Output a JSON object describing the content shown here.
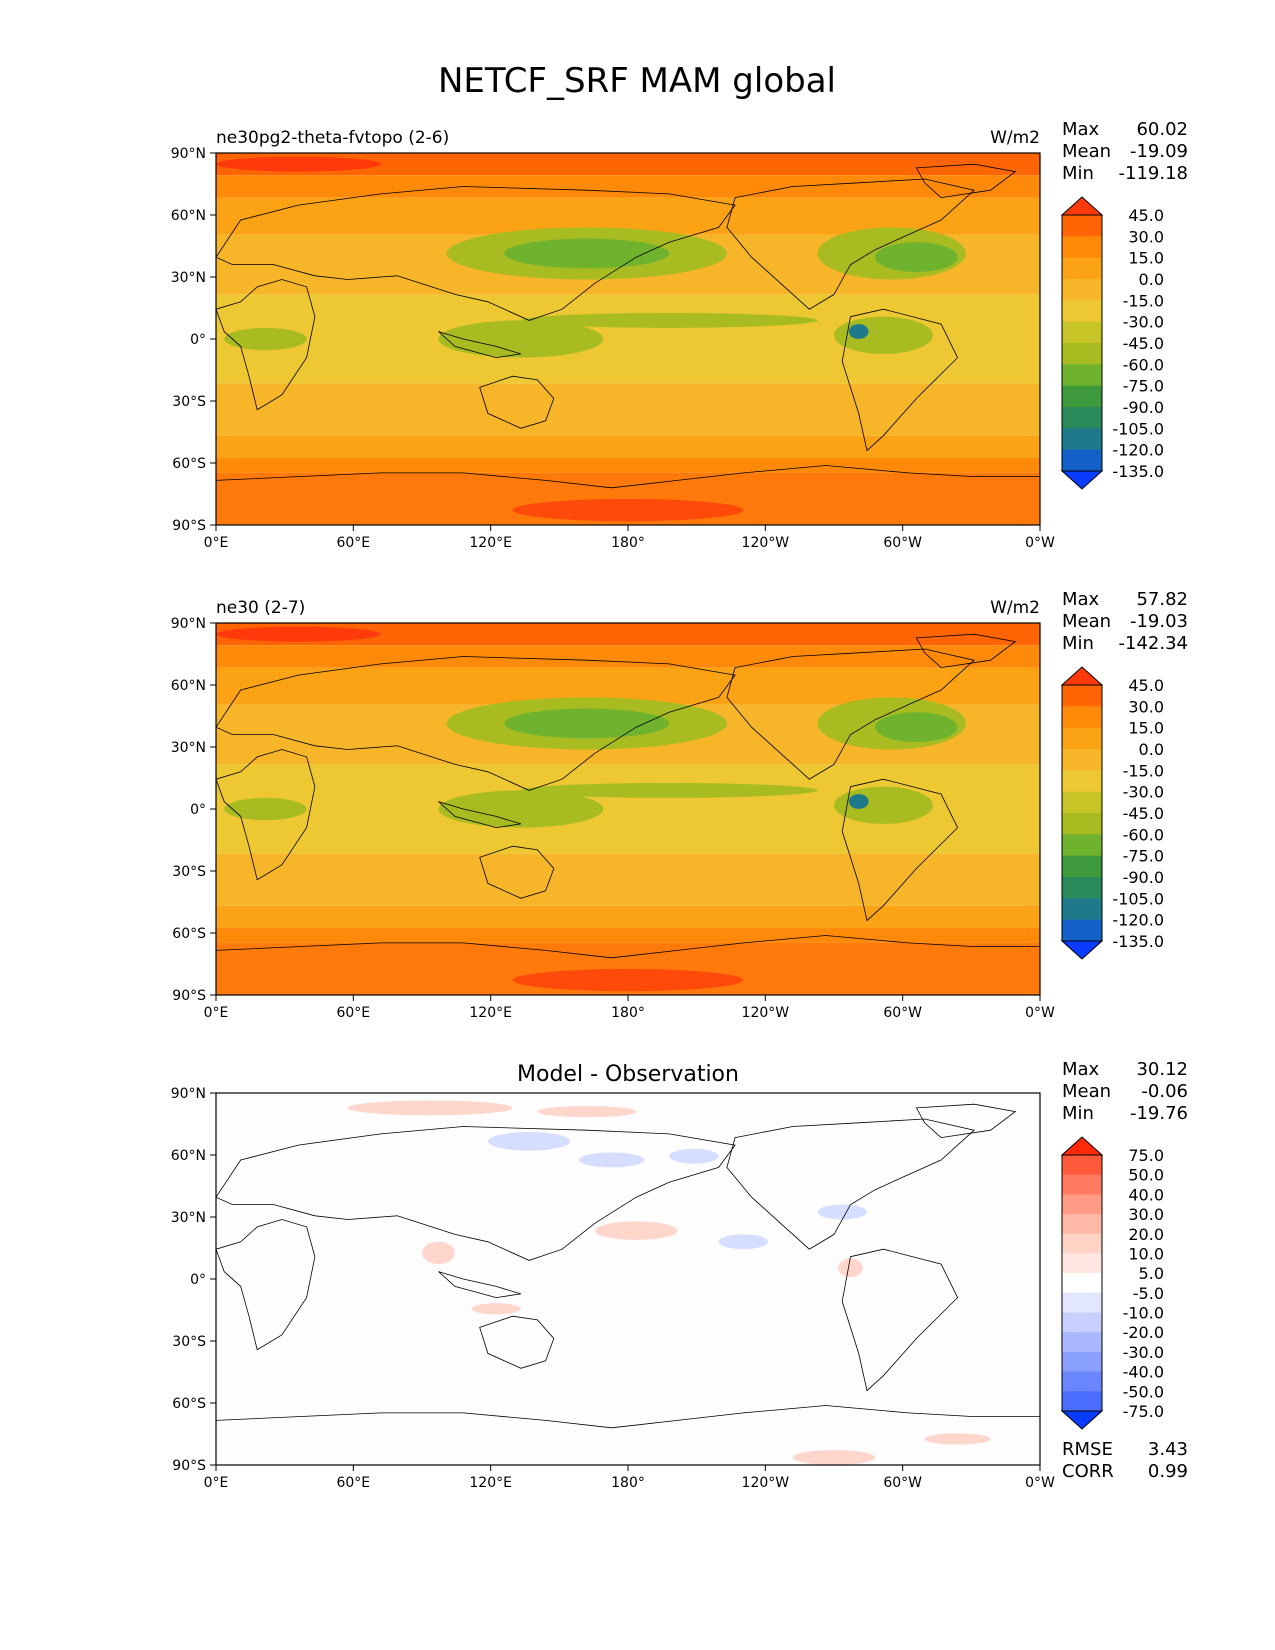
{
  "chart_data": {
    "type": "heatmap",
    "title": "NETCF_SRF MAM global",
    "lon_ticks": [
      "0°E",
      "60°E",
      "120°E",
      "180°",
      "120°W",
      "60°W",
      "0°W"
    ],
    "lat_ticks": [
      "90°N",
      "60°N",
      "30°N",
      "0°",
      "30°S",
      "60°S",
      "90°S"
    ],
    "panels": [
      {
        "id": "model",
        "title_left": "ne30pg2-theta-fvtopo (2-6)",
        "title_right": "W/m2",
        "title_center": "",
        "stats": [
          {
            "label": "Max",
            "value": "60.02"
          },
          {
            "label": "Mean",
            "value": "-19.09"
          },
          {
            "label": "Min",
            "value": "-119.18"
          }
        ],
        "colorbar_levels": [
          "45.0",
          "30.0",
          "15.0",
          "0.0",
          "-15.0",
          "-30.0",
          "-45.0",
          "-60.0",
          "-75.0",
          "-90.0",
          "-105.0",
          "-120.0",
          "-135.0"
        ],
        "colorbar_colors": [
          "#ff3a0a",
          "#ff6505",
          "#ff8a0a",
          "#fba315",
          "#f7b52a",
          "#eec832",
          "#c7c428",
          "#a8bc22",
          "#6fb22d",
          "#3f9a3d",
          "#2a8a5a",
          "#1e7a8a",
          "#1260c8",
          "#0a3cff"
        ],
        "footer": []
      },
      {
        "id": "reference",
        "title_left": "ne30 (2-7)",
        "title_right": "W/m2",
        "title_center": "",
        "stats": [
          {
            "label": "Max",
            "value": "57.82"
          },
          {
            "label": "Mean",
            "value": "-19.03"
          },
          {
            "label": "Min",
            "value": "-142.34"
          }
        ],
        "colorbar_levels": [
          "45.0",
          "30.0",
          "15.0",
          "0.0",
          "-15.0",
          "-30.0",
          "-45.0",
          "-60.0",
          "-75.0",
          "-90.0",
          "-105.0",
          "-120.0",
          "-135.0"
        ],
        "colorbar_colors": [
          "#ff3a0a",
          "#ff6505",
          "#ff8a0a",
          "#fba315",
          "#f7b52a",
          "#eec832",
          "#c7c428",
          "#a8bc22",
          "#6fb22d",
          "#3f9a3d",
          "#2a8a5a",
          "#1e7a8a",
          "#1260c8",
          "#0a3cff"
        ],
        "footer": []
      },
      {
        "id": "difference",
        "title_left": "",
        "title_right": "",
        "title_center": "Model - Observation",
        "stats": [
          {
            "label": "Max",
            "value": "30.12"
          },
          {
            "label": "Mean",
            "value": "-0.06"
          },
          {
            "label": "Min",
            "value": "-19.76"
          }
        ],
        "colorbar_levels": [
          "75.0",
          "50.0",
          "40.0",
          "30.0",
          "20.0",
          "10.0",
          "5.0",
          "-5.0",
          "-10.0",
          "-20.0",
          "-30.0",
          "-40.0",
          "-50.0",
          "-75.0"
        ],
        "colorbar_colors": [
          "#ff2a0a",
          "#ff5a3c",
          "#ff7a60",
          "#ff9a84",
          "#ffb8a6",
          "#ffd2c6",
          "#ffe8e2",
          "#ffffff",
          "#e2e6ff",
          "#c8d0ff",
          "#aab8ff",
          "#8aa0ff",
          "#6a86ff",
          "#4a6cff",
          "#0a3cff"
        ],
        "footer": [
          {
            "label": "RMSE",
            "value": "3.43"
          },
          {
            "label": "CORR",
            "value": "0.99"
          }
        ]
      }
    ],
    "background_colors": {
      "polar_north": "#ff6505",
      "polar_south": "#ff7a0a",
      "midlat": "#fba315",
      "tropics": "#eec832",
      "storm_track": "#a8bc22",
      "itcz": "#6fb22d",
      "diff_positive": "#ffd6cc",
      "diff_negative": "#d6deff"
    }
  }
}
